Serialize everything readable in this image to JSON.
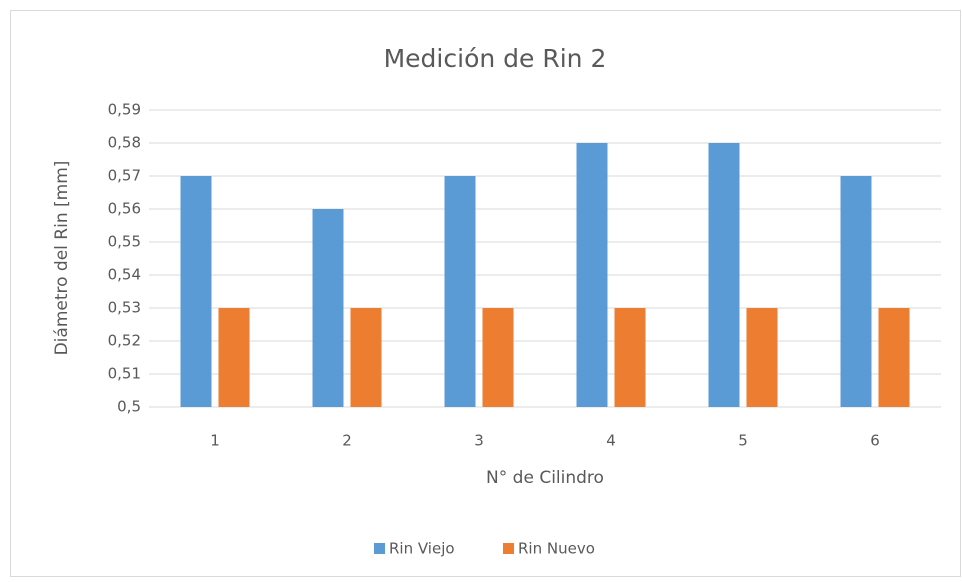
{
  "chart_data": {
    "type": "bar",
    "title": "Medición de Rin 2",
    "x_label": "N° de Cilindro",
    "y_label": "Diámetro del Rin [mm]",
    "categories": [
      "1",
      "2",
      "3",
      "4",
      "5",
      "6"
    ],
    "series": [
      {
        "name": "Rin Viejo",
        "color": "#5b9bd5",
        "values": [
          0.57,
          0.56,
          0.57,
          0.58,
          0.58,
          0.57
        ]
      },
      {
        "name": "Rin Nuevo",
        "color": "#ed7d31",
        "values": [
          0.53,
          0.53,
          0.53,
          0.53,
          0.53,
          0.53
        ]
      }
    ],
    "ylim": [
      0.5,
      0.59
    ],
    "yticks": [
      {
        "value": 0.5,
        "label": "0,5"
      },
      {
        "value": 0.51,
        "label": "0,51"
      },
      {
        "value": 0.52,
        "label": "0,52"
      },
      {
        "value": 0.53,
        "label": "0,53"
      },
      {
        "value": 0.54,
        "label": "0,54"
      },
      {
        "value": 0.55,
        "label": "0,55"
      },
      {
        "value": 0.56,
        "label": "0,56"
      },
      {
        "value": 0.57,
        "label": "0,57"
      },
      {
        "value": 0.58,
        "label": "0,58"
      },
      {
        "value": 0.59,
        "label": "0,59"
      }
    ],
    "grid": true,
    "legend": "bottom"
  }
}
